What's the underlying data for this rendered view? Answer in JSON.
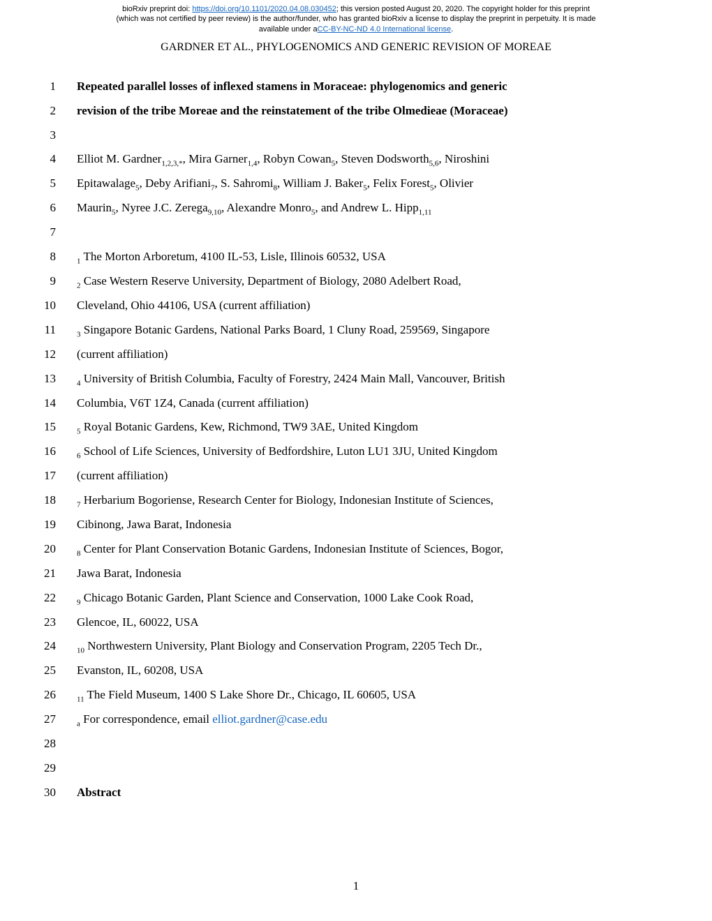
{
  "preprint": {
    "line1_pre": "bioRxiv preprint doi: ",
    "doi_url": "https://doi.org/10.1101/2020.04.08.030452",
    "line1_post": "; this version posted August 20, 2020. The copyright holder for this preprint",
    "line2": "(which was not certified by peer review) is the author/funder, who has granted bioRxiv a license to display the preprint in perpetuity. It is made",
    "line3_pre": "available under a",
    "license_text": "CC-BY-NC-ND 4.0 International license",
    "line3_post": "."
  },
  "running_head": "GARDNER ET AL., PHYLOGENOMICS AND GENERIC REVISION OF MOREAE",
  "lines": [
    {
      "n": "1",
      "text": "Repeated parallel losses of inflexed stamens in Moraceae: phylogenomics and generic",
      "bold": true
    },
    {
      "n": "2",
      "text": "revision of the tribe Moreae and the reinstatement of the tribe Olmedieae (Moraceae)",
      "bold": true
    },
    {
      "n": "3",
      "text": ""
    },
    {
      "n": "4",
      "html": "Elliot M. Gardner<span class=\"sub\">1,2,3,*</span>, Mira Garner<span class=\"sub\">1,4</span>, Robyn Cowan<span class=\"sub\">5</span>, Steven Dodsworth<span class=\"sub\">5,6</span>, Niroshini"
    },
    {
      "n": "5",
      "html": "Epitawalage<span class=\"sub\">5</span>, Deby Arifiani<span class=\"sub\">7</span>, S. Sahromi<span class=\"sub\">8</span>, William J. Baker<span class=\"sub\">5</span>, Felix Forest<span class=\"sub\">5</span>, Olivier"
    },
    {
      "n": "6",
      "html": "Maurin<span class=\"sub\">5</span>, Nyree J.C. Zerega<span class=\"sub\">9,10</span>, Alexandre Monro<span class=\"sub\">5</span>, and Andrew L. Hipp<span class=\"sub\">1,11</span>"
    },
    {
      "n": "7",
      "text": ""
    },
    {
      "n": "8",
      "html": "<span class=\"sub\">1</span> The Morton Arboretum, 4100 IL-53, Lisle, Illinois 60532, USA"
    },
    {
      "n": "9",
      "html": "<span class=\"sub\">2</span> Case Western Reserve University, Department of Biology, 2080 Adelbert Road,"
    },
    {
      "n": "10",
      "text": "Cleveland, Ohio 44106, USA (current affiliation)"
    },
    {
      "n": "11",
      "html": "<span class=\"sub\">3</span> Singapore Botanic Gardens, National Parks Board, 1 Cluny Road, 259569, Singapore"
    },
    {
      "n": "12",
      "text": "(current affiliation)"
    },
    {
      "n": "13",
      "html": "<span class=\"sub\">4</span> University of British Columbia, Faculty of Forestry, 2424 Main Mall, Vancouver, British"
    },
    {
      "n": "14",
      "text": "Columbia, V6T 1Z4, Canada (current affiliation)"
    },
    {
      "n": "15",
      "html": "<span class=\"sub\">5</span> Royal Botanic Gardens, Kew, Richmond, TW9 3AE, United Kingdom"
    },
    {
      "n": "16",
      "html": "<span class=\"sub\">6</span> School of Life Sciences, University of Bedfordshire, Luton LU1 3JU, United Kingdom"
    },
    {
      "n": "17",
      "text": "(current affiliation)"
    },
    {
      "n": "18",
      "html": "<span class=\"sub\">7</span> Herbarium Bogoriense, Research Center for Biology, Indonesian Institute of Sciences,"
    },
    {
      "n": "19",
      "text": "Cibinong, Jawa Barat, Indonesia"
    },
    {
      "n": "20",
      "html": "<span class=\"sub\">8</span> Center for Plant Conservation Botanic Gardens, Indonesian Institute of Sciences, Bogor,"
    },
    {
      "n": "21",
      "text": "Jawa Barat, Indonesia"
    },
    {
      "n": "22",
      "html": "<span class=\"sub\">9</span> Chicago Botanic Garden, Plant Science and Conservation, 1000 Lake Cook Road,"
    },
    {
      "n": "23",
      "text": "Glencoe, IL, 60022, USA"
    },
    {
      "n": "24",
      "html": "<span class=\"sub\">10</span> Northwestern University, Plant Biology and Conservation Program, 2205 Tech Dr.,"
    },
    {
      "n": "25",
      "text": "Evanston, IL, 60208, USA"
    },
    {
      "n": "26",
      "html": "<span class=\"sub\">11</span> The Field Museum, 1400 S Lake Shore Dr., Chicago, IL 60605, USA"
    },
    {
      "n": "27",
      "html": "<span class=\"sub\">a</span> For correspondence, email <a href=\"#\">elliot.gardner@case.edu</a>"
    },
    {
      "n": "28",
      "text": ""
    },
    {
      "n": "29",
      "text": ""
    },
    {
      "n": "30",
      "text": "Abstract",
      "bold": true
    }
  ],
  "page_number": "1"
}
